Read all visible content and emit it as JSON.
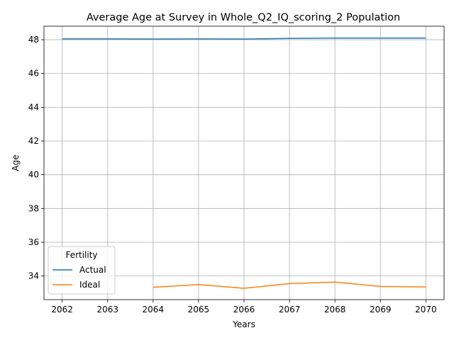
{
  "chart_data": {
    "type": "line",
    "title": "Average Age at Survey in Whole_Q2_IQ_scoring_2 Population",
    "xlabel": "Years",
    "ylabel": "Age",
    "x": [
      2062,
      2063,
      2064,
      2065,
      2066,
      2067,
      2068,
      2069,
      2070
    ],
    "x_ticks": [
      "2062",
      "2063",
      "2064",
      "2065",
      "2066",
      "2067",
      "2068",
      "2069",
      "2070"
    ],
    "y_ticks": [
      "34",
      "36",
      "38",
      "40",
      "42",
      "44",
      "46",
      "48"
    ],
    "xlim": [
      2061.6,
      2070.4
    ],
    "ylim": [
      32.6,
      48.8
    ],
    "grid": true,
    "legend": {
      "title": "Fertility",
      "placement": "lower-left"
    },
    "series": [
      {
        "name": "Actual",
        "color": "#1f77b4",
        "values": [
          48.05,
          48.05,
          48.04,
          48.05,
          48.04,
          48.08,
          48.1,
          48.1,
          48.1
        ]
      },
      {
        "name": "Ideal",
        "color": "#ff7f0e",
        "values": [
          null,
          null,
          33.33,
          33.49,
          33.27,
          33.55,
          33.64,
          33.38,
          33.35
        ]
      }
    ]
  }
}
